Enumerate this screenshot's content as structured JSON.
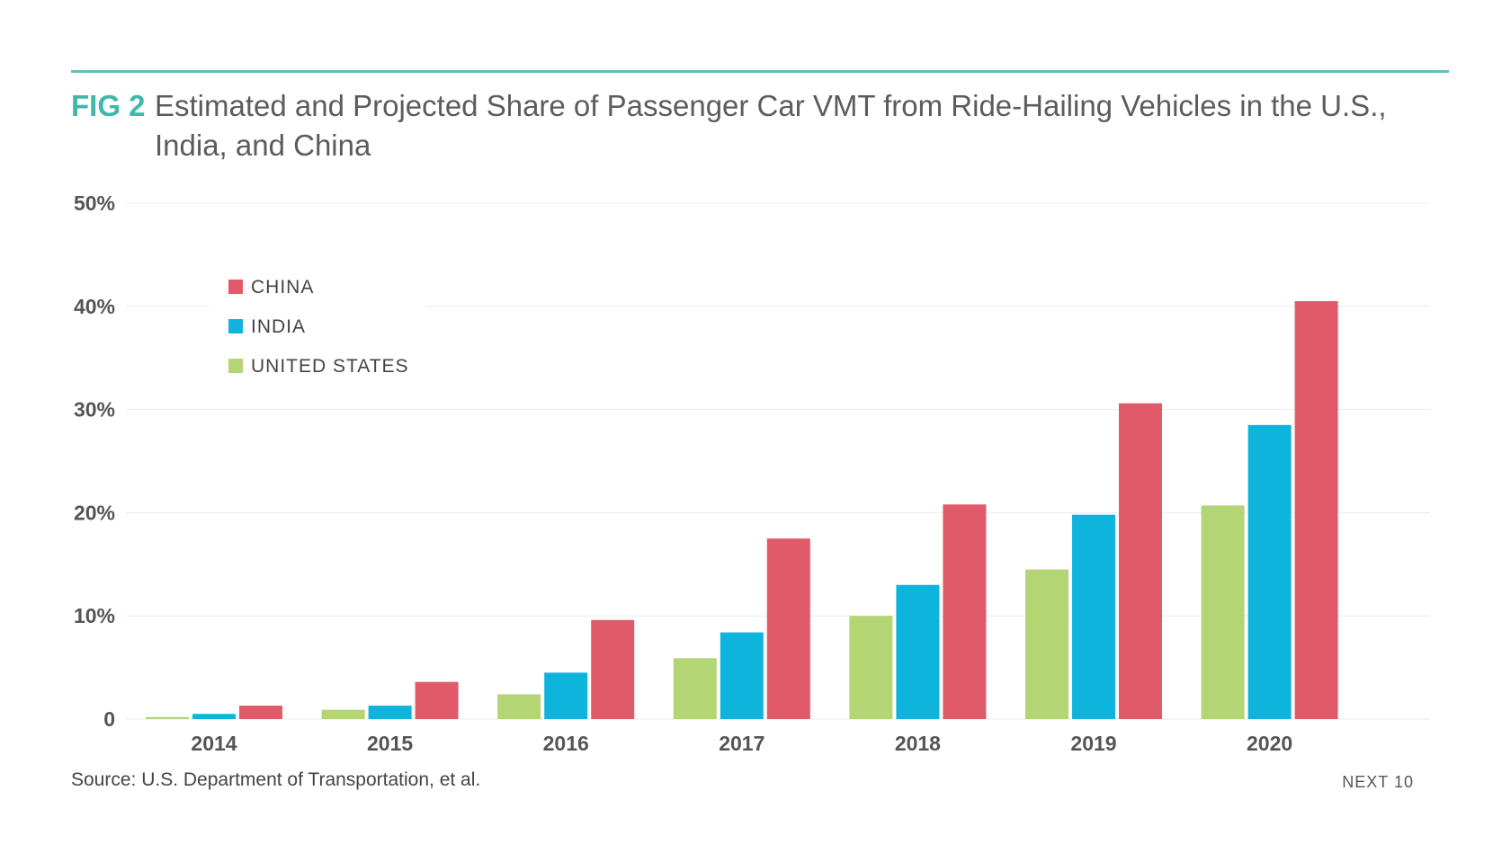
{
  "header": {
    "fig_label": "FIG 2",
    "title": "Estimated and Projected Share of Passenger Car VMT from Ride-Hailing Vehicles in the U.S., India, and China"
  },
  "footer": {
    "source": "Source: U.S. Department of Transportation, et al.",
    "brand": "NEXT 10"
  },
  "colors": {
    "accent": "#5ec4b6",
    "china": "#e05a6a",
    "india": "#0eb4dc",
    "united_states": "#b3d574"
  },
  "chart_data": {
    "type": "bar",
    "categories": [
      "2014",
      "2015",
      "2016",
      "2017",
      "2018",
      "2019",
      "2020"
    ],
    "series": [
      {
        "name": "UNITED STATES",
        "color": "#b3d574",
        "values": [
          0.2,
          0.9,
          2.4,
          5.9,
          10.0,
          14.5,
          20.7
        ]
      },
      {
        "name": "INDIA",
        "color": "#0eb4dc",
        "values": [
          0.5,
          1.3,
          4.5,
          8.4,
          13.0,
          19.8,
          28.5
        ]
      },
      {
        "name": "CHINA",
        "color": "#e05a6a",
        "values": [
          1.3,
          3.6,
          9.6,
          17.5,
          20.8,
          30.6,
          40.5
        ]
      }
    ],
    "legend_order": [
      "CHINA",
      "INDIA",
      "UNITED STATES"
    ],
    "legend_position": "top-left",
    "y_ticks": [
      "0",
      "10%",
      "20%",
      "30%",
      "40%",
      "50%"
    ],
    "ylim": [
      0,
      50
    ],
    "grid": true,
    "xlabel": "",
    "ylabel": ""
  }
}
